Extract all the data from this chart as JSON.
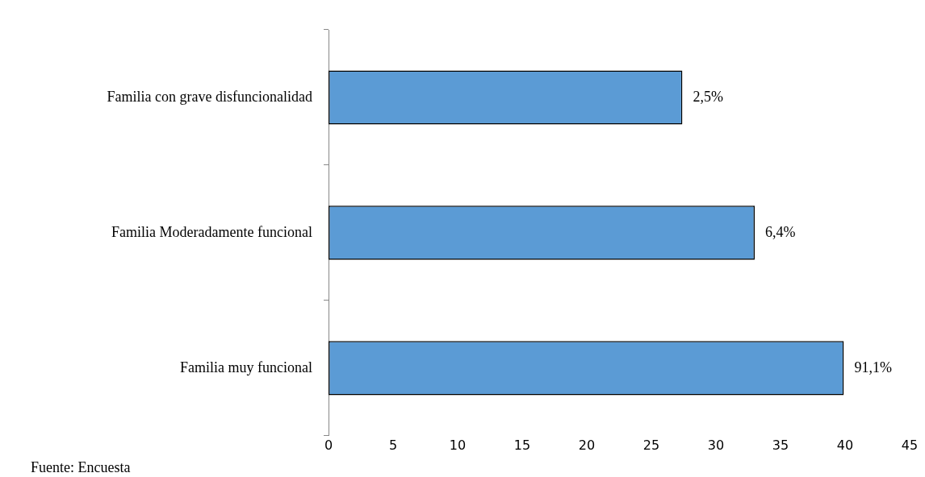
{
  "chart_data": {
    "type": "bar",
    "orientation": "horizontal",
    "categories": [
      "Familia con grave disfuncionalidad",
      "Familia Moderadamente funcional",
      "Familia muy funcional"
    ],
    "values": [
      27.4,
      33.0,
      39.9
    ],
    "color": "#5b9bd5",
    "xlim": [
      0,
      45
    ],
    "xticks": [
      0,
      5,
      10,
      15,
      20,
      25,
      30,
      35,
      40,
      45
    ],
    "annotations": [
      {
        "text": "2,5%",
        "x": 27.4,
        "y": "Familia con grave disfuncionalidad"
      },
      {
        "text": "6,4%",
        "x": 33.0,
        "y": "Familia Moderadamente funcional"
      },
      {
        "text": "91,1%",
        "x": 39.9,
        "y": "Familia muy funcional"
      },
      "Fuente: Encuesta"
    ]
  }
}
